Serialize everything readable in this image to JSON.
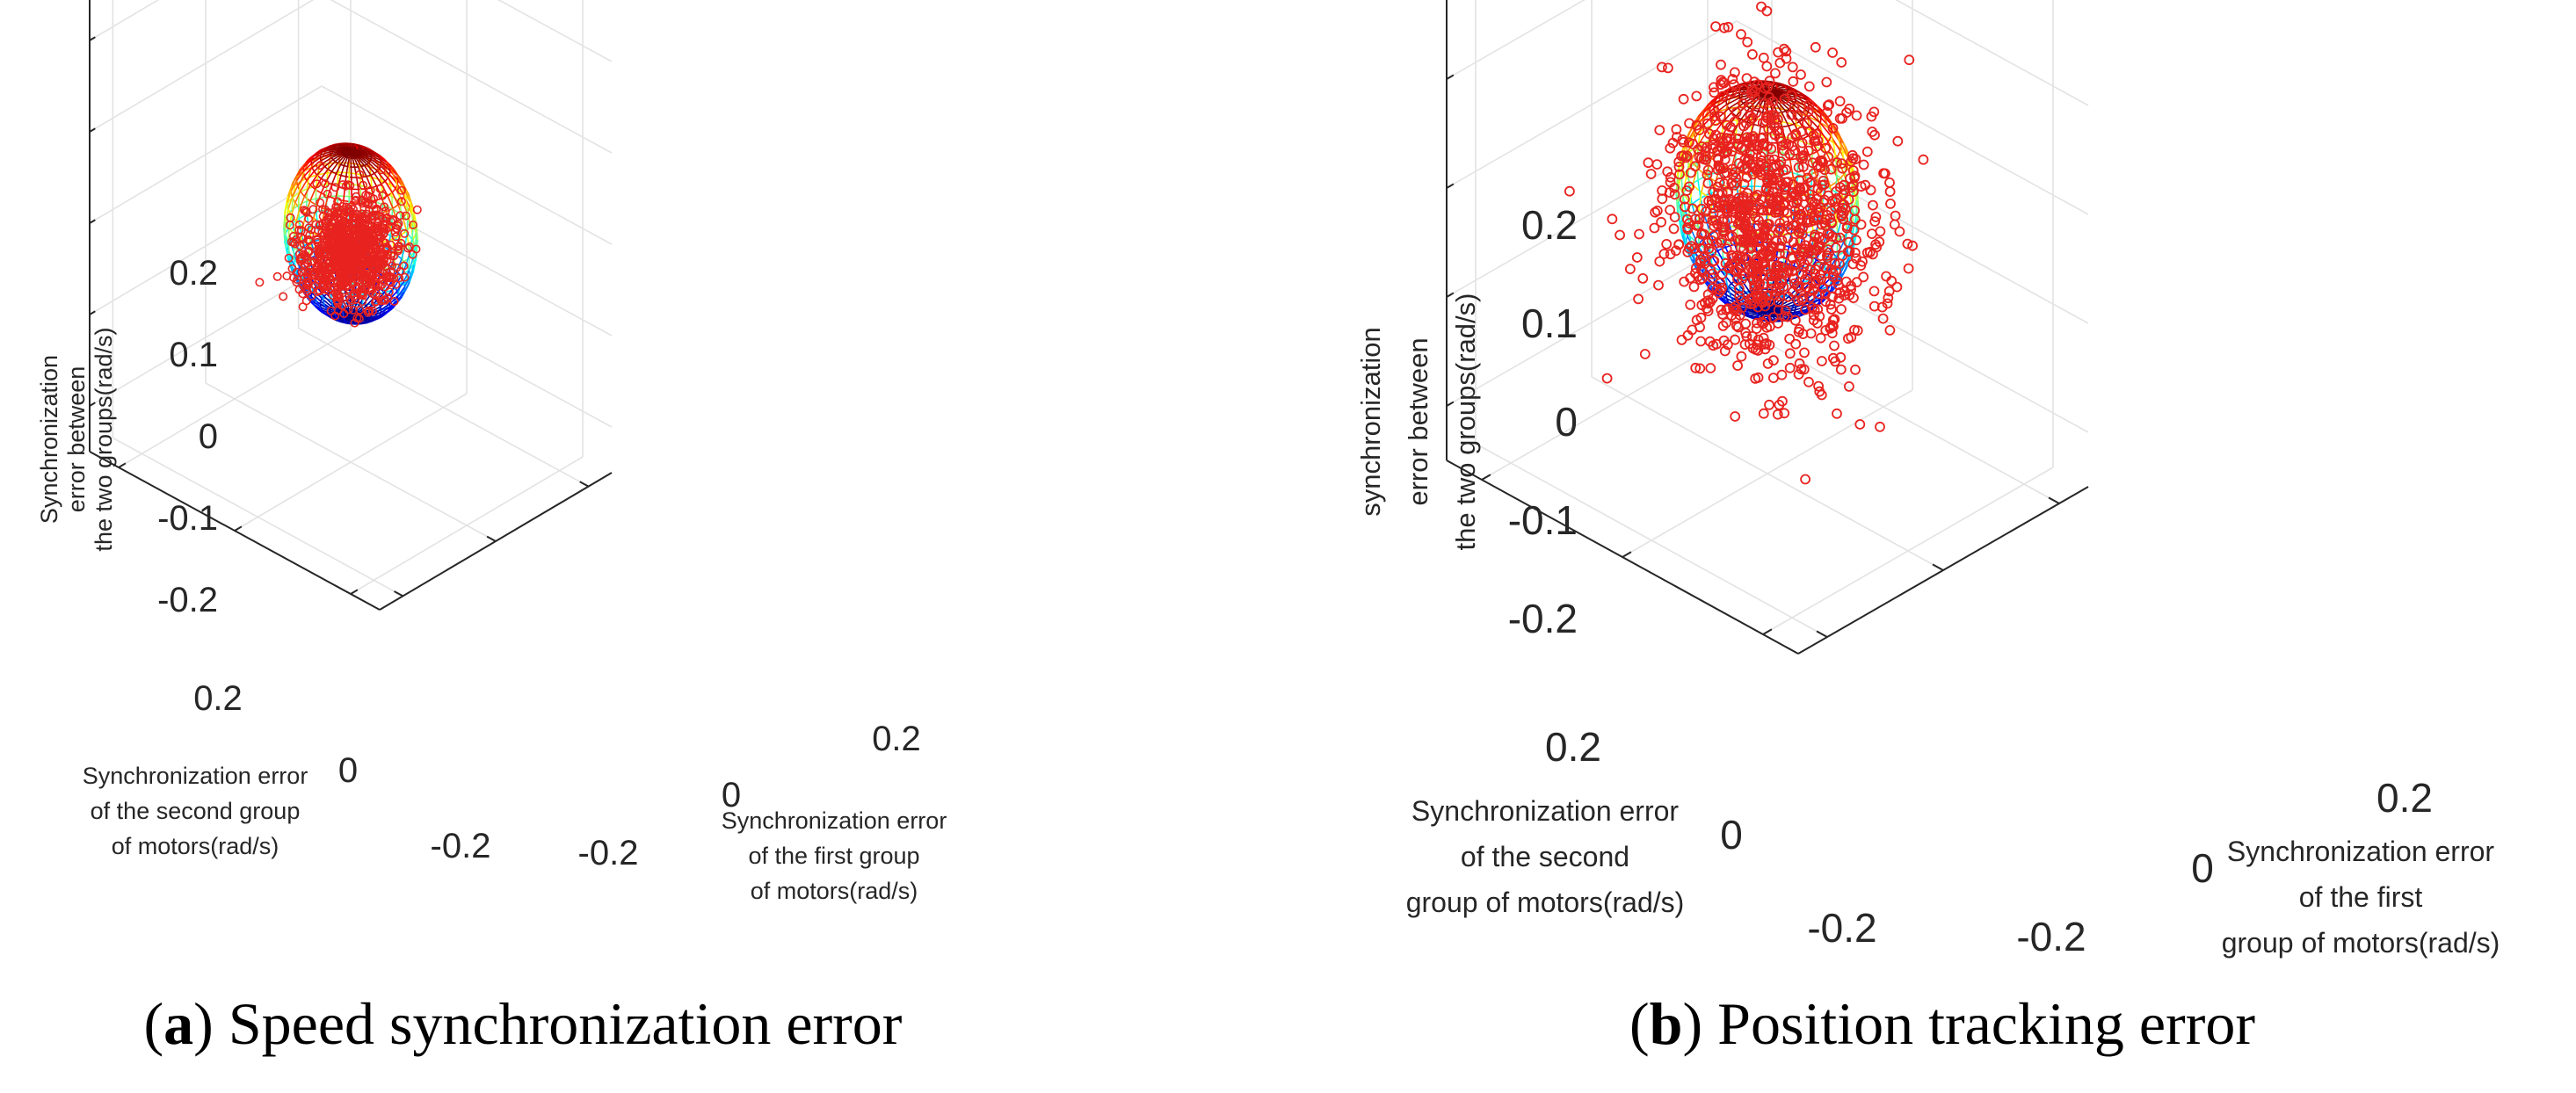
{
  "chart_data": [
    {
      "type": "scatter3d",
      "panel": "a",
      "caption_letter": "a",
      "caption_text": "Speed synchronization error",
      "x_label": [
        "Synchronization error",
        "of the first group",
        "of motors(rad/s)"
      ],
      "y_label": [
        "Synchronization error",
        "of the second group",
        "of motors(rad/s)"
      ],
      "z_label": [
        "Synchronization",
        "error between",
        "the two groups(rad/s)"
      ],
      "x_ticks": [
        "-0.2",
        "0",
        "0.2"
      ],
      "y_ticks": [
        "-0.2",
        "0",
        "0.2"
      ],
      "z_ticks": [
        "0.2",
        "0.1",
        "0",
        "-0.1",
        "-0.2"
      ],
      "xlim": [
        -0.25,
        0.25
      ],
      "ylim": [
        -0.25,
        0.25
      ],
      "zlim": [
        -0.25,
        0.25
      ],
      "sphere_radius": 0.09,
      "sphere_style": "wireframe, colormap jet by height",
      "points": {
        "count": 900,
        "distribution": "ellipsoidal cloud",
        "center": [
          0,
          0,
          -0.02
        ],
        "spread": [
          0.035,
          0.035,
          0.018
        ],
        "marker": "circle",
        "color": "#e8231f"
      },
      "grid": true
    },
    {
      "type": "scatter3d",
      "panel": "b",
      "caption_letter": "b",
      "caption_text": "Position tracking error",
      "x_label": [
        "Synchronization error",
        "of the first",
        "group of motors(rad/s)"
      ],
      "y_label": [
        "Synchronization error",
        "of the second",
        "group of motors(rad/s)"
      ],
      "z_label": [
        "synchronization",
        "error between",
        "the two groups(rad/s)"
      ],
      "x_ticks": [
        "-0.2",
        "0",
        "0.2"
      ],
      "y_ticks": [
        "-0.2",
        "0",
        "0.2"
      ],
      "z_ticks": [
        "0.2",
        "0.1",
        "0",
        "-0.1",
        "-0.2"
      ],
      "xlim": [
        -0.25,
        0.25
      ],
      "ylim": [
        -0.25,
        0.25
      ],
      "zlim": [
        -0.25,
        0.25
      ],
      "sphere_radius": 0.1,
      "sphere_style": "wireframe, colormap jet by height",
      "points": {
        "count": 1100,
        "distribution": "gaussian cloud",
        "center": [
          0,
          0,
          -0.02
        ],
        "spread": [
          0.06,
          0.06,
          0.06
        ],
        "marker": "circle",
        "color": "#e8231f"
      },
      "grid": true
    }
  ]
}
